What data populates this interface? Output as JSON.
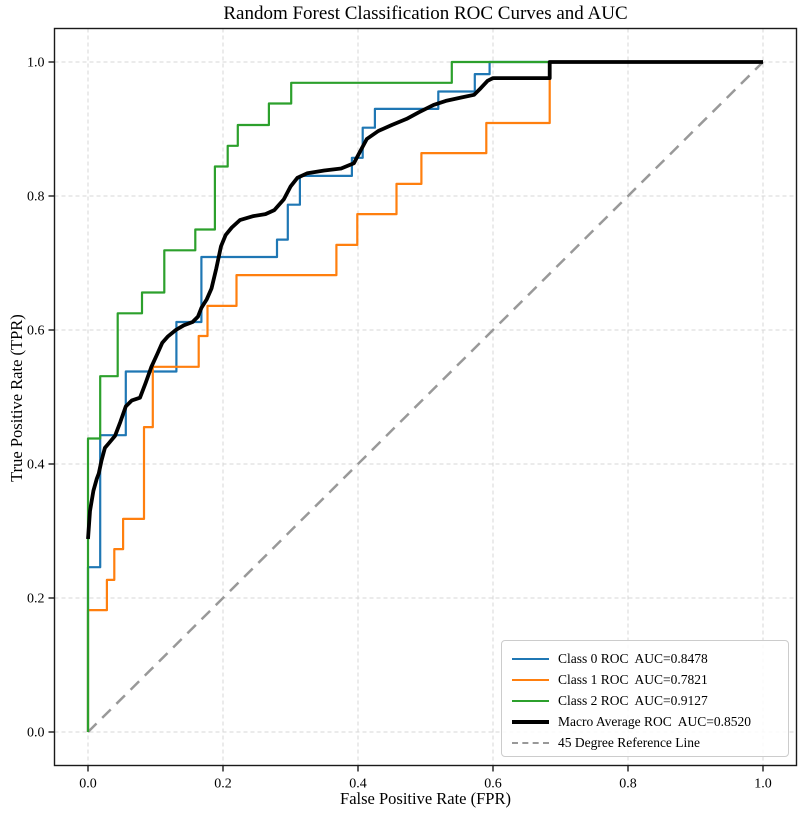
{
  "figure": {
    "title": "Random Forest Classification ROC Curves and AUC"
  },
  "axes": {
    "xlabel": "False Positive Rate (FPR)",
    "ylabel": "True Positive Rate (TPR)"
  },
  "legend": {
    "position": "lower right",
    "items": [
      {
        "label": "Class 0 ROC  AUC=0.8478",
        "color": "#1f77b4",
        "dashed": false,
        "sample_width": 2.5
      },
      {
        "label": "Class 1 ROC  AUC=0.7821",
        "color": "#ff7f0e",
        "dashed": false,
        "sample_width": 2.5
      },
      {
        "label": "Class 2 ROC  AUC=0.9127",
        "color": "#2ca02c",
        "dashed": false,
        "sample_width": 2.5
      },
      {
        "label": "Macro Average ROC  AUC=0.8520",
        "color": "#000000",
        "dashed": false,
        "sample_width": 4
      },
      {
        "label": "45 Degree Reference Line",
        "color": "#999999",
        "dashed": true,
        "sample_width": 2.5
      }
    ]
  },
  "chart_data": {
    "type": "line",
    "title": "Random Forest Classification ROC Curves and AUC",
    "xlabel": "False Positive Rate (FPR)",
    "ylabel": "True Positive Rate (TPR)",
    "xlim": [
      -0.05,
      1.05
    ],
    "ylim": [
      -0.05,
      1.05
    ],
    "grid": true,
    "grid_style": "dashed",
    "legend_position": "lower right",
    "x_ticks": [
      0,
      0.2,
      0.4,
      0.6,
      0.8,
      1.0
    ],
    "y_ticks": [
      0,
      0.2,
      0.4,
      0.6,
      0.8,
      1.0
    ],
    "x_tick_labels": [
      "0.0",
      "0.2",
      "0.4",
      "0.6",
      "0.8",
      "1.0"
    ],
    "y_tick_labels": [
      "0.0",
      "0.2",
      "0.4",
      "0.6",
      "0.8",
      "1.0"
    ],
    "series": [
      {
        "id": "reference-line",
        "name": "45 Degree Reference Line",
        "auc": null,
        "color": "#999999",
        "line_width": 2.5,
        "dash": [
          12,
          8
        ],
        "points": [
          [
            0,
            0
          ],
          [
            1,
            1
          ]
        ]
      },
      {
        "id": "class-0-roc",
        "name": "Class 0 ROC",
        "auc": 0.8478,
        "color": "#1f77b4",
        "line_width": 2.2,
        "dash": null,
        "points": [
          [
            0,
            0
          ],
          [
            0,
            0.246
          ],
          [
            0.018,
            0.246
          ],
          [
            0.018,
            0.443
          ],
          [
            0.056,
            0.443
          ],
          [
            0.056,
            0.538
          ],
          [
            0.131,
            0.538
          ],
          [
            0.131,
            0.612
          ],
          [
            0.168,
            0.612
          ],
          [
            0.168,
            0.709
          ],
          [
            0.28,
            0.709
          ],
          [
            0.28,
            0.735
          ],
          [
            0.296,
            0.735
          ],
          [
            0.296,
            0.787
          ],
          [
            0.314,
            0.787
          ],
          [
            0.314,
            0.83
          ],
          [
            0.391,
            0.83
          ],
          [
            0.391,
            0.857
          ],
          [
            0.407,
            0.857
          ],
          [
            0.407,
            0.902
          ],
          [
            0.425,
            0.902
          ],
          [
            0.425,
            0.93
          ],
          [
            0.519,
            0.93
          ],
          [
            0.519,
            0.956
          ],
          [
            0.573,
            0.956
          ],
          [
            0.573,
            0.982
          ],
          [
            0.595,
            0.982
          ],
          [
            0.595,
            1
          ],
          [
            1,
            1
          ]
        ]
      },
      {
        "id": "class-1-roc",
        "name": "Class 1 ROC",
        "auc": 0.7821,
        "color": "#ff7f0e",
        "line_width": 2.2,
        "dash": null,
        "points": [
          [
            0,
            0
          ],
          [
            0,
            0.182
          ],
          [
            0.028,
            0.182
          ],
          [
            0.028,
            0.227
          ],
          [
            0.039,
            0.227
          ],
          [
            0.039,
            0.273
          ],
          [
            0.052,
            0.273
          ],
          [
            0.052,
            0.318
          ],
          [
            0.083,
            0.318
          ],
          [
            0.083,
            0.455
          ],
          [
            0.096,
            0.455
          ],
          [
            0.096,
            0.545
          ],
          [
            0.164,
            0.545
          ],
          [
            0.164,
            0.591
          ],
          [
            0.177,
            0.591
          ],
          [
            0.177,
            0.636
          ],
          [
            0.22,
            0.636
          ],
          [
            0.22,
            0.682
          ],
          [
            0.368,
            0.682
          ],
          [
            0.368,
            0.727
          ],
          [
            0.399,
            0.727
          ],
          [
            0.399,
            0.773
          ],
          [
            0.457,
            0.773
          ],
          [
            0.457,
            0.818
          ],
          [
            0.494,
            0.818
          ],
          [
            0.494,
            0.864
          ],
          [
            0.59,
            0.864
          ],
          [
            0.59,
            0.909
          ],
          [
            0.684,
            0.909
          ],
          [
            0.684,
            1
          ],
          [
            1,
            1
          ]
        ]
      },
      {
        "id": "class-2-roc",
        "name": "Class 2 ROC",
        "auc": 0.9127,
        "color": "#2ca02c",
        "line_width": 2.2,
        "dash": null,
        "points": [
          [
            0,
            0
          ],
          [
            0,
            0.438
          ],
          [
            0.018,
            0.438
          ],
          [
            0.018,
            0.531
          ],
          [
            0.044,
            0.531
          ],
          [
            0.044,
            0.625
          ],
          [
            0.08,
            0.625
          ],
          [
            0.08,
            0.656
          ],
          [
            0.113,
            0.656
          ],
          [
            0.113,
            0.719
          ],
          [
            0.159,
            0.719
          ],
          [
            0.159,
            0.75
          ],
          [
            0.188,
            0.75
          ],
          [
            0.188,
            0.844
          ],
          [
            0.207,
            0.844
          ],
          [
            0.207,
            0.875
          ],
          [
            0.222,
            0.875
          ],
          [
            0.222,
            0.906
          ],
          [
            0.268,
            0.906
          ],
          [
            0.268,
            0.938
          ],
          [
            0.301,
            0.938
          ],
          [
            0.301,
            0.969
          ],
          [
            0.539,
            0.969
          ],
          [
            0.539,
            1
          ],
          [
            1,
            1
          ]
        ]
      },
      {
        "id": "macro-average-roc",
        "name": "Macro Average ROC",
        "auc": 0.852,
        "color": "#000000",
        "line_width": 3.8,
        "dash": null,
        "points": [
          [
            0,
            0.288
          ],
          [
            0.003,
            0.33
          ],
          [
            0.008,
            0.36
          ],
          [
            0.013,
            0.378
          ],
          [
            0.016,
            0.386
          ],
          [
            0.02,
            0.405
          ],
          [
            0.025,
            0.424
          ],
          [
            0.031,
            0.431
          ],
          [
            0.04,
            0.442
          ],
          [
            0.048,
            0.463
          ],
          [
            0.056,
            0.486
          ],
          [
            0.065,
            0.495
          ],
          [
            0.077,
            0.499
          ],
          [
            0.085,
            0.52
          ],
          [
            0.094,
            0.545
          ],
          [
            0.103,
            0.565
          ],
          [
            0.11,
            0.581
          ],
          [
            0.118,
            0.59
          ],
          [
            0.13,
            0.6
          ],
          [
            0.142,
            0.607
          ],
          [
            0.155,
            0.612
          ],
          [
            0.163,
            0.62
          ],
          [
            0.168,
            0.633
          ],
          [
            0.176,
            0.646
          ],
          [
            0.183,
            0.662
          ],
          [
            0.19,
            0.692
          ],
          [
            0.197,
            0.725
          ],
          [
            0.204,
            0.742
          ],
          [
            0.213,
            0.753
          ],
          [
            0.225,
            0.764
          ],
          [
            0.245,
            0.77
          ],
          [
            0.263,
            0.773
          ],
          [
            0.276,
            0.779
          ],
          [
            0.29,
            0.795
          ],
          [
            0.3,
            0.814
          ],
          [
            0.31,
            0.827
          ],
          [
            0.325,
            0.834
          ],
          [
            0.35,
            0.838
          ],
          [
            0.375,
            0.841
          ],
          [
            0.394,
            0.849
          ],
          [
            0.404,
            0.868
          ],
          [
            0.413,
            0.885
          ],
          [
            0.43,
            0.897
          ],
          [
            0.45,
            0.906
          ],
          [
            0.472,
            0.915
          ],
          [
            0.49,
            0.925
          ],
          [
            0.512,
            0.936
          ],
          [
            0.53,
            0.942
          ],
          [
            0.553,
            0.947
          ],
          [
            0.572,
            0.951
          ],
          [
            0.582,
            0.961
          ],
          [
            0.592,
            0.972
          ],
          [
            0.6,
            0.976
          ],
          [
            0.684,
            0.976
          ],
          [
            0.684,
            1
          ],
          [
            1,
            1
          ]
        ]
      }
    ]
  }
}
